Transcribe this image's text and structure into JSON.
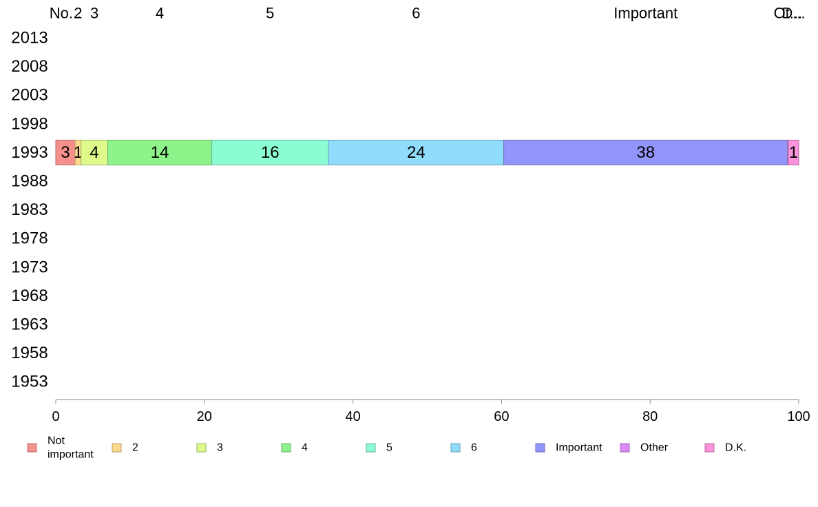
{
  "chart_data": {
    "type": "bar",
    "orientation": "horizontal",
    "stacked": true,
    "categories": [
      "2013",
      "2008",
      "2003",
      "1998",
      "1993",
      "1988",
      "1983",
      "1978",
      "1973",
      "1968",
      "1963",
      "1958",
      "1953"
    ],
    "series": [
      {
        "name": "Not important",
        "color": "#f5908c",
        "values": [
          null,
          null,
          null,
          null,
          2.6,
          null,
          null,
          null,
          null,
          null,
          null,
          null,
          null
        ],
        "labels": [
          "",
          "",
          "",
          "",
          "3",
          "",
          "",
          "",
          "",
          "",
          "",
          "",
          ""
        ]
      },
      {
        "name": "2",
        "color": "#fdd98d",
        "values": [
          null,
          null,
          null,
          null,
          0.8,
          null,
          null,
          null,
          null,
          null,
          null,
          null,
          null
        ],
        "labels": [
          "",
          "",
          "",
          "",
          "1",
          "",
          "",
          "",
          "",
          "",
          "",
          "",
          ""
        ]
      },
      {
        "name": "3",
        "color": "#ddfa8b",
        "values": [
          null,
          null,
          null,
          null,
          3.6,
          null,
          null,
          null,
          null,
          null,
          null,
          null,
          null
        ],
        "labels": [
          "",
          "",
          "",
          "",
          "4",
          "",
          "",
          "",
          "",
          "",
          "",
          "",
          ""
        ]
      },
      {
        "name": "4",
        "color": "#8ef38b",
        "values": [
          null,
          null,
          null,
          null,
          14.0,
          null,
          null,
          null,
          null,
          null,
          null,
          null,
          null
        ],
        "labels": [
          "",
          "",
          "",
          "",
          "14",
          "",
          "",
          "",
          "",
          "",
          "",
          "",
          ""
        ]
      },
      {
        "name": "5",
        "color": "#8cfcd2",
        "values": [
          null,
          null,
          null,
          null,
          15.7,
          null,
          null,
          null,
          null,
          null,
          null,
          null,
          null
        ],
        "labels": [
          "",
          "",
          "",
          "",
          "16",
          "",
          "",
          "",
          "",
          "",
          "",
          "",
          ""
        ]
      },
      {
        "name": "6",
        "color": "#8fdcfc",
        "values": [
          null,
          null,
          null,
          null,
          23.6,
          null,
          null,
          null,
          null,
          null,
          null,
          null,
          null
        ],
        "labels": [
          "",
          "",
          "",
          "",
          "24",
          "",
          "",
          "",
          "",
          "",
          "",
          "",
          ""
        ]
      },
      {
        "name": "Important",
        "color": "#9296fb",
        "values": [
          null,
          null,
          null,
          null,
          38.2,
          null,
          null,
          null,
          null,
          null,
          null,
          null,
          null
        ],
        "labels": [
          "",
          "",
          "",
          "",
          "38",
          "",
          "",
          "",
          "",
          "",
          "",
          "",
          ""
        ]
      },
      {
        "name": "Other",
        "color": "#dc8af8",
        "values": [
          null,
          null,
          null,
          null,
          0.1,
          null,
          null,
          null,
          null,
          null,
          null,
          null,
          null
        ],
        "labels": [
          "",
          "",
          "",
          "",
          "",
          "",
          "",
          "",
          "",
          "",
          "",
          "",
          ""
        ]
      },
      {
        "name": "D.K.",
        "color": "#fc93dc",
        "values": [
          null,
          null,
          null,
          null,
          1.4,
          null,
          null,
          null,
          null,
          null,
          null,
          null,
          null
        ],
        "labels": [
          "",
          "",
          "",
          "",
          "1",
          "",
          "",
          "",
          "",
          "",
          "",
          "",
          ""
        ]
      }
    ],
    "column_labels": [
      "No...",
      "2",
      "3",
      "4",
      "5",
      "6",
      "Important",
      "Ot...",
      "D..."
    ],
    "xlim": [
      0,
      100
    ],
    "xticks": [
      0,
      20,
      40,
      60,
      80,
      100
    ],
    "title": "",
    "xlabel": "",
    "ylabel": "",
    "grid": false,
    "legend": {
      "position": "bottom",
      "entries": [
        {
          "lines": [
            "Not",
            "important"
          ],
          "color": "#f5908c"
        },
        {
          "lines": [
            "2"
          ],
          "color": "#fdd98d"
        },
        {
          "lines": [
            "3"
          ],
          "color": "#ddfa8b"
        },
        {
          "lines": [
            "4"
          ],
          "color": "#8ef38b"
        },
        {
          "lines": [
            "5"
          ],
          "color": "#8cfcd2"
        },
        {
          "lines": [
            "6"
          ],
          "color": "#8fdcfc"
        },
        {
          "lines": [
            "Important"
          ],
          "color": "#9296fb"
        },
        {
          "lines": [
            "Other"
          ],
          "color": "#dc8af8"
        },
        {
          "lines": [
            "D.K."
          ],
          "color": "#fc93dc"
        }
      ]
    }
  }
}
